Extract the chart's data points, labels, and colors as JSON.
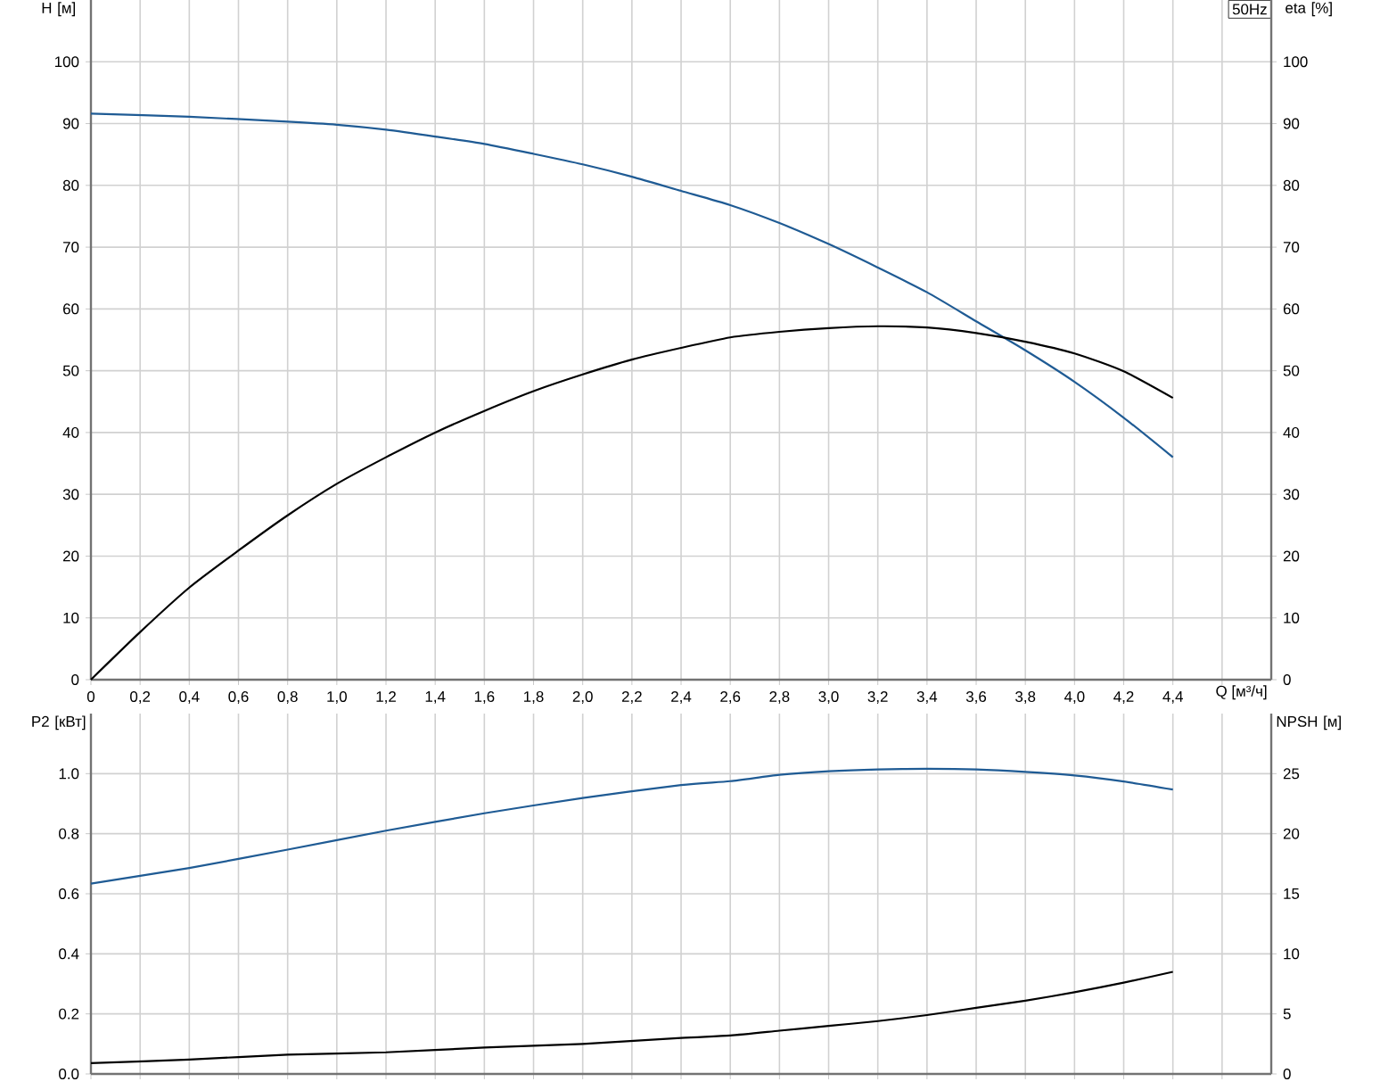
{
  "chart_data": [
    {
      "type": "line",
      "xlabel": "Q [м³/ч]",
      "ylabel": "H [м]",
      "y2label": "eta [%]",
      "annotations": [
        "50Hz"
      ],
      "grid": true,
      "marker": "none",
      "line_style": "solid",
      "xlim": [
        0,
        4.8
      ],
      "ylim": [
        0,
        110
      ],
      "y2lim": [
        0,
        110
      ],
      "xticks": [
        {
          "value": 0,
          "label": "0"
        },
        {
          "value": 0.2,
          "label": "0,2"
        },
        {
          "value": 0.4,
          "label": "0,4"
        },
        {
          "value": 0.6,
          "label": "0,6"
        },
        {
          "value": 0.8,
          "label": "0,8"
        },
        {
          "value": 1.0,
          "label": "1,0"
        },
        {
          "value": 1.2,
          "label": "1,2"
        },
        {
          "value": 1.4,
          "label": "1,4"
        },
        {
          "value": 1.6,
          "label": "1,6"
        },
        {
          "value": 1.8,
          "label": "1,8"
        },
        {
          "value": 2.0,
          "label": "2,0"
        },
        {
          "value": 2.2,
          "label": "2,2"
        },
        {
          "value": 2.4,
          "label": "2,4"
        },
        {
          "value": 2.6,
          "label": "2,6"
        },
        {
          "value": 2.8,
          "label": "2,8"
        },
        {
          "value": 3.0,
          "label": "3,0"
        },
        {
          "value": 3.2,
          "label": "3,2"
        },
        {
          "value": 3.4,
          "label": "3,4"
        },
        {
          "value": 3.6,
          "label": "3,6"
        },
        {
          "value": 3.8,
          "label": "3,8"
        },
        {
          "value": 4.0,
          "label": "4,0"
        },
        {
          "value": 4.2,
          "label": "4,2"
        },
        {
          "value": 4.4,
          "label": "4,4"
        },
        {
          "value": 4.6,
          "label": null
        }
      ],
      "yticks": [
        0,
        10,
        20,
        30,
        40,
        50,
        60,
        70,
        80,
        90,
        100
      ],
      "y2ticks": [
        0,
        10,
        20,
        30,
        40,
        50,
        60,
        70,
        80,
        90,
        100
      ],
      "series": [
        {
          "color": "#1f5b94",
          "x": [
            0,
            0.4,
            0.8,
            1.0,
            1.2,
            1.4,
            1.6,
            1.8,
            2.0,
            2.2,
            2.4,
            2.6,
            2.8,
            3.0,
            3.2,
            3.4,
            3.6,
            3.8,
            4.0,
            4.2,
            4.4
          ],
          "values": [
            91.6,
            91.1,
            90.3,
            89.8,
            89.0,
            87.9,
            86.7,
            85.1,
            83.4,
            81.4,
            79.1,
            76.8,
            73.9,
            70.5,
            66.7,
            62.7,
            58.0,
            53.3,
            48.2,
            42.4,
            36.0
          ]
        },
        {
          "color": "#000000",
          "axis": "y2",
          "x": [
            0,
            0.2,
            0.4,
            0.6,
            0.8,
            1.0,
            1.2,
            1.4,
            1.6,
            1.8,
            2.0,
            2.2,
            2.4,
            2.6,
            2.8,
            3.0,
            3.2,
            3.4,
            3.6,
            3.8,
            4.0,
            4.2,
            4.4
          ],
          "values": [
            0,
            7.7,
            14.9,
            20.9,
            26.6,
            31.7,
            36.0,
            40.0,
            43.5,
            46.7,
            49.4,
            51.8,
            53.7,
            55.4,
            56.3,
            56.9,
            57.2,
            57.0,
            56.1,
            54.7,
            52.8,
            49.9,
            45.6
          ]
        }
      ]
    },
    {
      "type": "line",
      "ylabel": "P2 [кВт]",
      "y2label": "NPSH [м]",
      "grid": true,
      "marker": "none",
      "line_style": "solid",
      "tick_labels": "y",
      "xlim": [
        0,
        4.8
      ],
      "ylim": [
        0,
        1.2
      ],
      "y2lim": [
        0,
        30
      ],
      "xticks": [
        0,
        0.2,
        0.4,
        0.6,
        0.8,
        1.0,
        1.2,
        1.4,
        1.6,
        1.8,
        2.0,
        2.2,
        2.4,
        2.6,
        2.8,
        3.0,
        3.2,
        3.4,
        3.6,
        3.8,
        4.0,
        4.2,
        4.4,
        4.6
      ],
      "yticks": [
        {
          "value": 0,
          "label": "0.0"
        },
        {
          "value": 0.2,
          "label": "0.2"
        },
        {
          "value": 0.4,
          "label": "0.4"
        },
        {
          "value": 0.6,
          "label": "0.6"
        },
        {
          "value": 0.8,
          "label": "0.8"
        },
        {
          "value": 1.0,
          "label": "1.0"
        }
      ],
      "y2ticks": [
        0,
        5,
        10,
        15,
        20,
        25
      ],
      "series": [
        {
          "color": "#1f5b94",
          "x": [
            0,
            0.4,
            0.8,
            1.2,
            1.6,
            2.0,
            2.4,
            2.6,
            2.8,
            3.0,
            3.2,
            3.4,
            3.6,
            3.8,
            4.0,
            4.2,
            4.4
          ],
          "values": [
            0.634,
            0.686,
            0.747,
            0.81,
            0.868,
            0.919,
            0.962,
            0.975,
            0.996,
            1.008,
            1.014,
            1.016,
            1.014,
            1.006,
            0.994,
            0.974,
            0.947
          ]
        },
        {
          "color": "#000000",
          "axis": "y2",
          "x": [
            0,
            0.4,
            0.8,
            1.2,
            1.6,
            2.0,
            2.4,
            2.6,
            2.8,
            3.0,
            3.2,
            3.4,
            3.6,
            3.8,
            4.0,
            4.2,
            4.4
          ],
          "values": [
            0.9,
            1.2,
            1.6,
            1.8,
            2.2,
            2.5,
            3.0,
            3.2,
            3.6,
            4.0,
            4.4,
            4.9,
            5.5,
            6.1,
            6.8,
            7.6,
            8.5
          ]
        }
      ]
    }
  ]
}
